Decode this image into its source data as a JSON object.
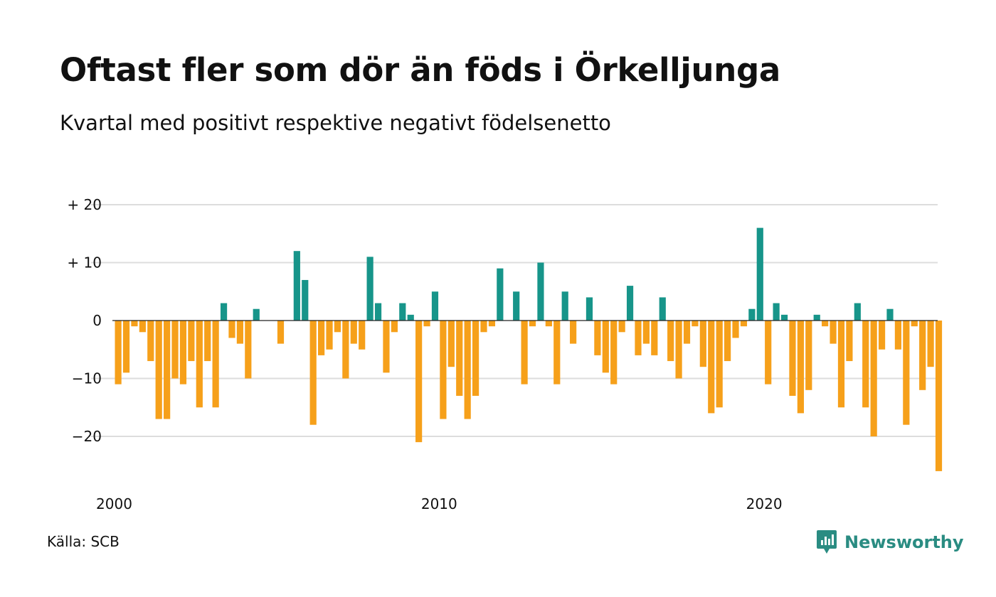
{
  "title": "Oftast fler som dör än föds i Örkelljunga",
  "subtitle": "Kvartal med positivt respektive negativt födelsenetto",
  "source": "Källa: SCB",
  "brand": "Newsworthy",
  "colors": {
    "positive": "#17958a",
    "negative": "#f6a01a",
    "gridline": "#dddddd",
    "brand": "#2a8c82"
  },
  "chart_data": {
    "type": "bar",
    "title": "Oftast fler som dör än föds i Örkelljunga",
    "subtitle": "Kvartal med positivt respektive negativt födelsenetto",
    "xlabel": "",
    "ylabel": "",
    "ylim": [
      -27,
      21
    ],
    "y_ticks": [
      20,
      10,
      0,
      -10,
      -20
    ],
    "y_tick_labels": [
      "+ 20",
      "+ 10",
      "0",
      "−10",
      "−20"
    ],
    "x_tick_labels": [
      "2000",
      "2010",
      "2020"
    ],
    "x_tick_years": [
      2000,
      2010,
      2020
    ],
    "start_year": 2000,
    "periods_per_year": 4,
    "grid": true,
    "legend": "none",
    "values": [
      -11,
      -9,
      -1,
      -2,
      -7,
      -17,
      -17,
      -10,
      -11,
      -7,
      -15,
      -7,
      -15,
      3,
      -3,
      -4,
      -10,
      2,
      0,
      0,
      -4,
      0,
      12,
      7,
      -18,
      -6,
      -5,
      -2,
      -10,
      -4,
      -5,
      11,
      3,
      -9,
      -2,
      3,
      1,
      -21,
      -1,
      5,
      -17,
      -8,
      -13,
      -17,
      -13,
      -2,
      -1,
      9,
      0,
      5,
      -11,
      -1,
      10,
      -1,
      -11,
      5,
      -4,
      0,
      4,
      -6,
      -9,
      -11,
      -2,
      6,
      -6,
      -4,
      -6,
      4,
      -7,
      -10,
      -4,
      -1,
      -8,
      -16,
      -15,
      -7,
      -3,
      -1,
      2,
      16,
      -11,
      3,
      1,
      -13,
      -16,
      -12,
      1,
      -1,
      -4,
      -15,
      -7,
      3,
      -15,
      -20,
      -5,
      2,
      -5,
      -18,
      -1,
      -12,
      -8,
      -26
    ]
  }
}
